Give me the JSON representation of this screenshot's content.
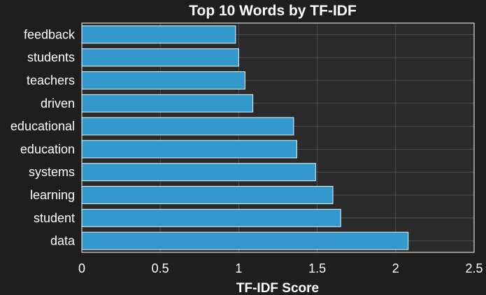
{
  "chart_data": {
    "type": "bar",
    "orientation": "horizontal",
    "title": "Top 10 Words by TF-IDF",
    "xlabel": "TF-IDF Score",
    "ylabel": "",
    "categories": [
      "data",
      "student",
      "learning",
      "systems",
      "education",
      "educational",
      "driven",
      "teachers",
      "students",
      "feedback"
    ],
    "values": [
      2.08,
      1.65,
      1.6,
      1.49,
      1.37,
      1.35,
      1.09,
      1.04,
      1.0,
      0.98
    ],
    "xlim": [
      0,
      2.5
    ],
    "xticks": [
      "0",
      "0.5",
      "1",
      "1.5",
      "2",
      "2.5"
    ],
    "xtick_values": [
      0,
      0.5,
      1,
      1.5,
      2,
      2.5
    ],
    "grid": true,
    "colors": {
      "background": "#1e1e1e",
      "plot_background": "#2a2a2a",
      "bar": "#3399cc",
      "bar_edge": "#e8f4fb",
      "grid": "#555555",
      "text": "#ffffff"
    }
  }
}
